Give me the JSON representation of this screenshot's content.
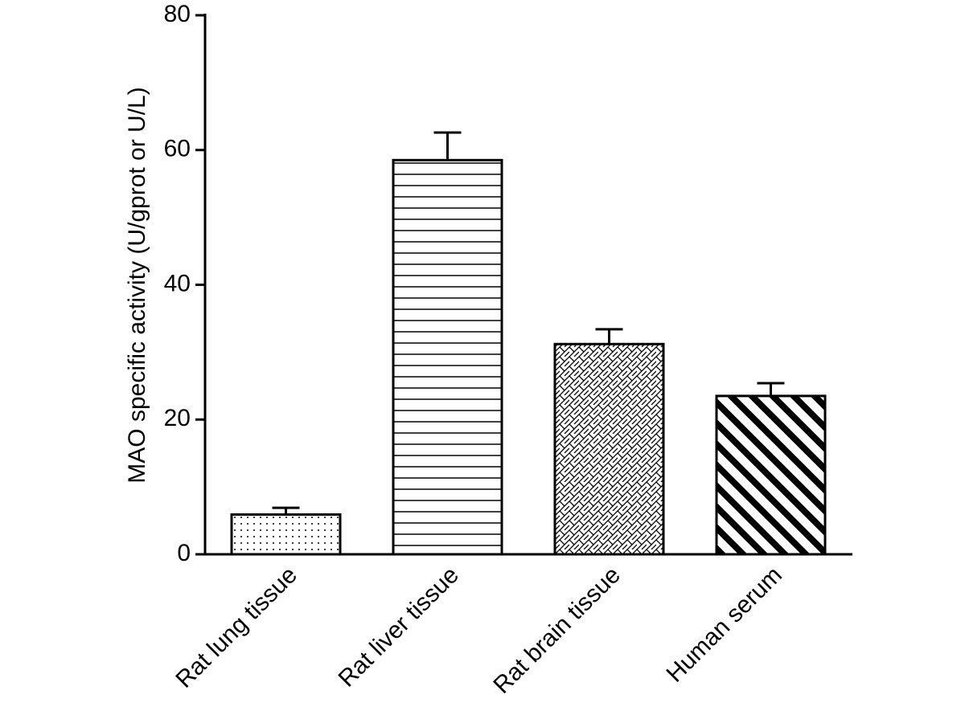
{
  "chart_data": {
    "type": "bar",
    "ylabel": "MAO specific activity (U/gprot or U/L)",
    "categories": [
      "Rat lung tissue",
      "Rat liver tissue",
      "Rat brain tissue",
      "Human serum"
    ],
    "values": [
      5.9,
      58.5,
      31.2,
      23.5
    ],
    "errors": [
      1.0,
      4.1,
      2.2,
      1.9
    ],
    "patterns": [
      "dots",
      "horizontal",
      "crosshatch",
      "diagonal"
    ],
    "color": "#000000",
    "ylim": [
      0,
      80
    ],
    "yticks": [
      0,
      20,
      40,
      60,
      80
    ],
    "grid": false
  }
}
